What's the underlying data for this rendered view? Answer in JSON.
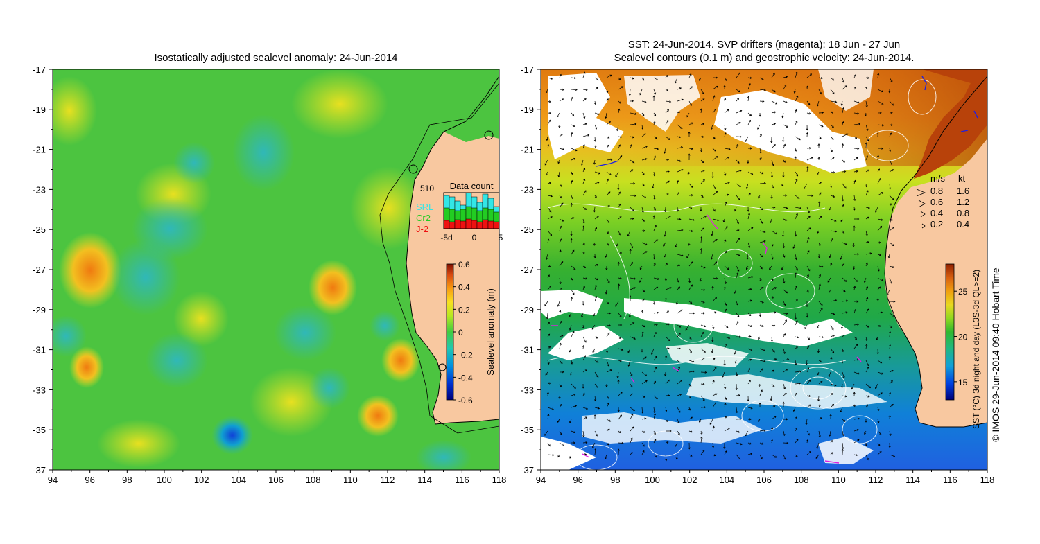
{
  "left_panel": {
    "title": "Isostatically adjusted sealevel anomaly: 24-Jun-2014",
    "x_ticks": [
      "94",
      "96",
      "98",
      "100",
      "102",
      "104",
      "106",
      "108",
      "110",
      "112",
      "114",
      "116",
      "118"
    ],
    "y_ticks": [
      "-17",
      "-19",
      "-21",
      "-23",
      "-25",
      "-27",
      "-29",
      "-31",
      "-33",
      "-35",
      "-37"
    ],
    "colorbar": {
      "label": "Sealevel anomaly (m)",
      "ticks": [
        "0.6",
        "0.4",
        "0.2",
        "0",
        "-0.2",
        "-0.4",
        "-0.6"
      ],
      "range": [
        -0.6,
        0.6
      ]
    },
    "data_count": {
      "title": "Data count",
      "max_value": "510",
      "legend": [
        {
          "name": "SRL",
          "color": "#33e6e6"
        },
        {
          "name": "Cr2",
          "color": "#22cc22"
        },
        {
          "name": "J-2",
          "color": "#ee1111"
        }
      ],
      "x_ticks": [
        "-5d",
        "0",
        "5"
      ]
    }
  },
  "right_panel": {
    "title_line1": "SST: 24-Jun-2014. SVP drifters (magenta): 18 Jun - 27 Jun",
    "title_line2": "Sealevel contours (0.1 m) and geostrophic velocity: 24-Jun-2014.",
    "x_ticks": [
      "94",
      "96",
      "98",
      "100",
      "102",
      "104",
      "106",
      "108",
      "110",
      "112",
      "114",
      "116",
      "118"
    ],
    "y_ticks": [
      "-17",
      "-19",
      "-21",
      "-23",
      "-25",
      "-27",
      "-29",
      "-31",
      "-33",
      "-35",
      "-37"
    ],
    "velocity_legend": {
      "header_ms": "m/s",
      "header_kt": "kt",
      "rows": [
        {
          "ms": "0.8",
          "kt": "1.6"
        },
        {
          "ms": "0.6",
          "kt": "1.2"
        },
        {
          "ms": "0.4",
          "kt": "0.8"
        },
        {
          "ms": "0.2",
          "kt": "0.4"
        }
      ]
    },
    "colorbar": {
      "label": "SST (°C) 3d night and day (L3S-3d QL>=2)",
      "ticks": [
        "25",
        "20",
        "15"
      ],
      "range": [
        13,
        28
      ]
    }
  },
  "credit": "© IMOS 29-Jun-2014 09:40 Hobart Time"
}
